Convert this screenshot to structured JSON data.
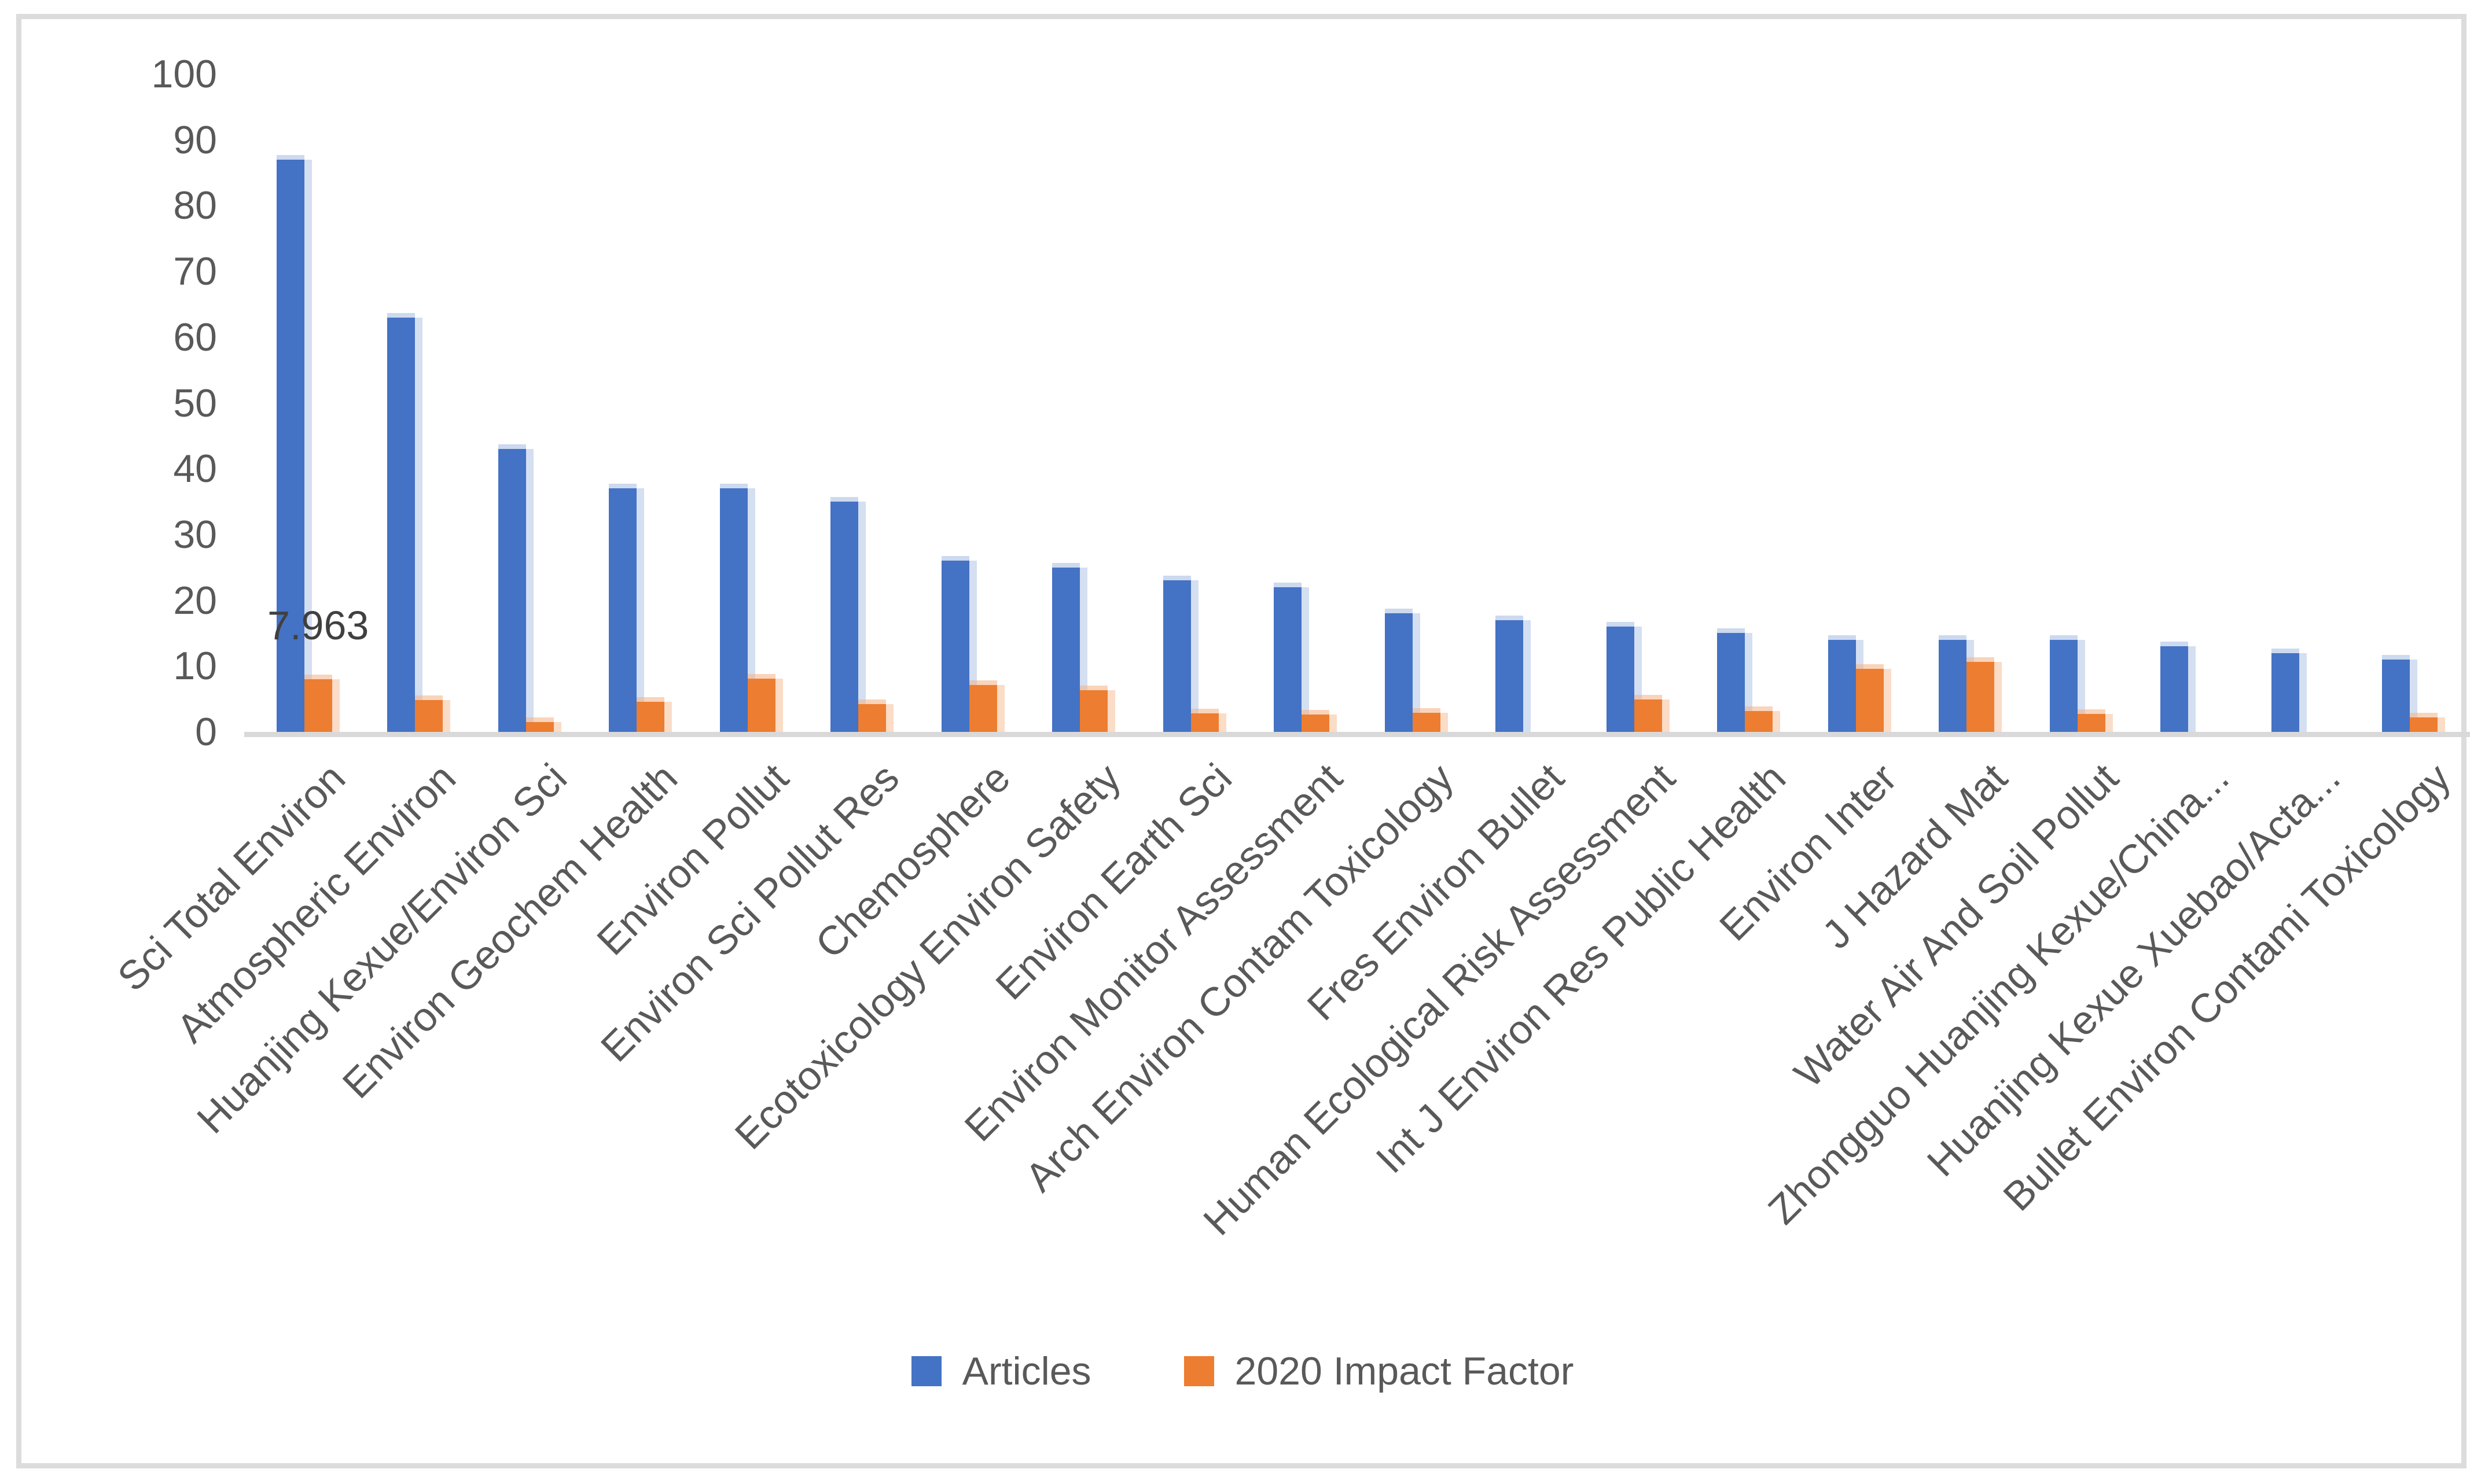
{
  "chart_data": {
    "type": "bar",
    "categories": [
      "Sci Total Environ",
      "Atmospheric Environ",
      "Huanjing Kexue/Environ Sci",
      "Environ Geochem Health",
      "Environ Pollut",
      "Environ Sci Pollut Res",
      "Chemosphere",
      "Ecotoxicology Environ Safety",
      "Environ Earth Sci",
      "Environ Monitor Assessment",
      "Arch Environ Contam Toxicology",
      "Fres Environ Bullet",
      "Human Ecological Risk Assessment",
      "Int J Environ Res Public Health",
      "Environ Inter",
      "J Hazard Mat",
      "Water Air And Soil Pollut",
      "Zhongguo Huanjing Kexue/China...",
      "Huanjing Kexue Xuebao/Acta...",
      "Bullet Environ Contami Toxicology"
    ],
    "series": [
      {
        "name": "Articles",
        "color": "#4472C4",
        "values": [
          87,
          63,
          43,
          37,
          37,
          35,
          26,
          25,
          23,
          22,
          18,
          17,
          16,
          15,
          14,
          14,
          14,
          13,
          12,
          11
        ]
      },
      {
        "name": "2020 Impact Factor",
        "color": "#ED7D31",
        "values": [
          7.963,
          4.8,
          1.5,
          4.6,
          8.1,
          4.2,
          7.1,
          6.3,
          2.8,
          2.6,
          2.9,
          0,
          4.9,
          3.2,
          9.6,
          10.6,
          2.7,
          0,
          0,
          2.2
        ]
      }
    ],
    "title": "",
    "xlabel": "",
    "ylabel": "",
    "ylim": [
      0,
      100
    ],
    "yticks": [
      0,
      10,
      20,
      30,
      40,
      50,
      60,
      70,
      80,
      90,
      100
    ],
    "grid": false,
    "legend_position": "bottom",
    "annotations": [
      {
        "series": "2020 Impact Factor",
        "category": "Sci Total Environ",
        "text": "7.963"
      }
    ]
  },
  "legend": {
    "items": [
      {
        "label": "Articles",
        "color": "#4472C4"
      },
      {
        "label": "2020 Impact Factor",
        "color": "#ED7D31"
      }
    ]
  },
  "colors": {
    "bar_articles": "#4472C4",
    "bar_impact_factor": "#ED7D31",
    "axis_text": "#595959",
    "baseline": "#d9d9d9",
    "chart_border": "#dcdcdc",
    "background": "#ffffff"
  }
}
